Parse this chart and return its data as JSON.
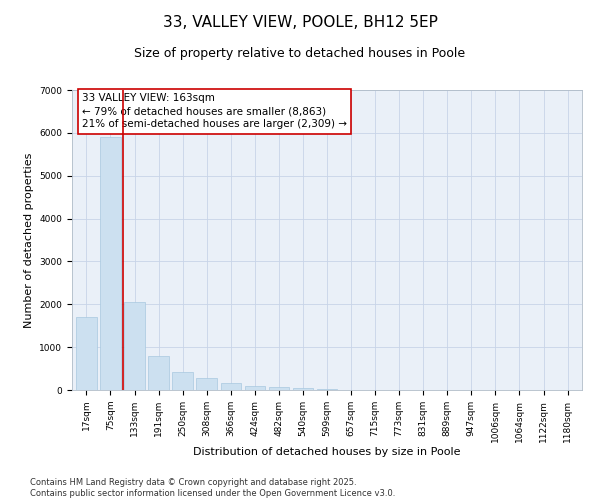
{
  "title": "33, VALLEY VIEW, POOLE, BH12 5EP",
  "subtitle": "Size of property relative to detached houses in Poole",
  "xlabel": "Distribution of detached houses by size in Poole",
  "ylabel": "Number of detached properties",
  "categories": [
    "17sqm",
    "75sqm",
    "133sqm",
    "191sqm",
    "250sqm",
    "308sqm",
    "366sqm",
    "424sqm",
    "482sqm",
    "540sqm",
    "599sqm",
    "657sqm",
    "715sqm",
    "773sqm",
    "831sqm",
    "889sqm",
    "947sqm",
    "1006sqm",
    "1064sqm",
    "1122sqm",
    "1180sqm"
  ],
  "values": [
    1700,
    5900,
    2050,
    800,
    420,
    270,
    170,
    90,
    70,
    50,
    30,
    5,
    5,
    0,
    0,
    0,
    0,
    0,
    0,
    0,
    0
  ],
  "bar_color": "#cce0f0",
  "bar_edge_color": "#a8c8e0",
  "vline_x": 1.5,
  "vline_color": "#cc0000",
  "annotation_text": "33 VALLEY VIEW: 163sqm\n← 79% of detached houses are smaller (8,863)\n21% of semi-detached houses are larger (2,309) →",
  "annotation_box_color": "#cc0000",
  "ylim": [
    0,
    7000
  ],
  "yticks": [
    0,
    1000,
    2000,
    3000,
    4000,
    5000,
    6000,
    7000
  ],
  "grid_color": "#c8d4e8",
  "bg_color": "#eaf0f8",
  "footnote": "Contains HM Land Registry data © Crown copyright and database right 2025.\nContains public sector information licensed under the Open Government Licence v3.0.",
  "title_fontsize": 11,
  "subtitle_fontsize": 9,
  "axis_label_fontsize": 8,
  "tick_fontsize": 6.5,
  "annotation_fontsize": 7.5,
  "footnote_fontsize": 6
}
